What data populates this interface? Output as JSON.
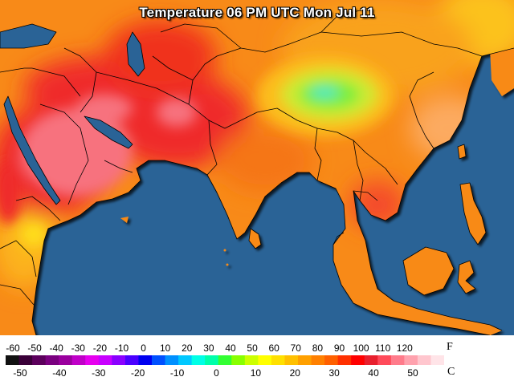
{
  "title": "Temperature 06 PM UTC Mon Jul 11",
  "colors": {
    "ocean": "#2a6396",
    "border": "#000000",
    "hot_red": "#ef2b2b",
    "very_hot_pink": "#f7727e",
    "warm_orange": "#f56b16",
    "mild_orange": "#f99a1c",
    "mild_yellow": "#fcc21c",
    "cool_yellow_green": "#cfe930",
    "cool_green": "#5cf05c",
    "cold_cyan": "#22e6e6"
  },
  "legend": {
    "fahrenheit_ticks": [
      "-60",
      "-50",
      "-40",
      "-30",
      "-20",
      "-10",
      "0",
      "10",
      "20",
      "30",
      "40",
      "50",
      "60",
      "70",
      "80",
      "90",
      "100",
      "110",
      "120"
    ],
    "celsius_ticks": [
      "-50",
      "-40",
      "-30",
      "-20",
      "-10",
      "0",
      "10",
      "20",
      "30",
      "40",
      "50"
    ],
    "fahrenheit_unit": "F",
    "celsius_unit": "C",
    "color_stops": [
      "#111111",
      "#3a0038",
      "#5c005c",
      "#7a0080",
      "#9a009e",
      "#c000c8",
      "#e600ef",
      "#c800ff",
      "#8a00ff",
      "#4a00ff",
      "#0000f0",
      "#0050ff",
      "#0090ff",
      "#00c8ff",
      "#00ffe6",
      "#00ffaa",
      "#33ff33",
      "#88ff00",
      "#ccff00",
      "#ffff00",
      "#ffe000",
      "#ffc000",
      "#ffa000",
      "#ff8000",
      "#ff6000",
      "#ff3000",
      "#ff0000",
      "#e8202e",
      "#ff4a5a",
      "#ff7b8b",
      "#ffa2ae",
      "#ffc6ce",
      "#ffe4e8"
    ]
  }
}
